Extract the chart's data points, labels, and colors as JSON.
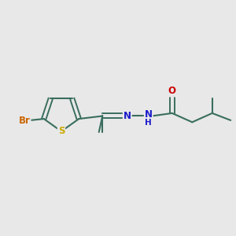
{
  "bg_color": "#e8e8e8",
  "atom_colors": {
    "C": "#3a6e5e",
    "N": "#1a1acc",
    "O": "#cc0000",
    "S": "#ccaa00",
    "Br": "#cc6600",
    "H": "#1a1acc"
  },
  "bond_color": "#3a6e5e",
  "figsize": [
    3.0,
    3.0
  ],
  "dpi": 100,
  "xlim": [
    0,
    10
  ],
  "ylim": [
    0,
    10
  ]
}
